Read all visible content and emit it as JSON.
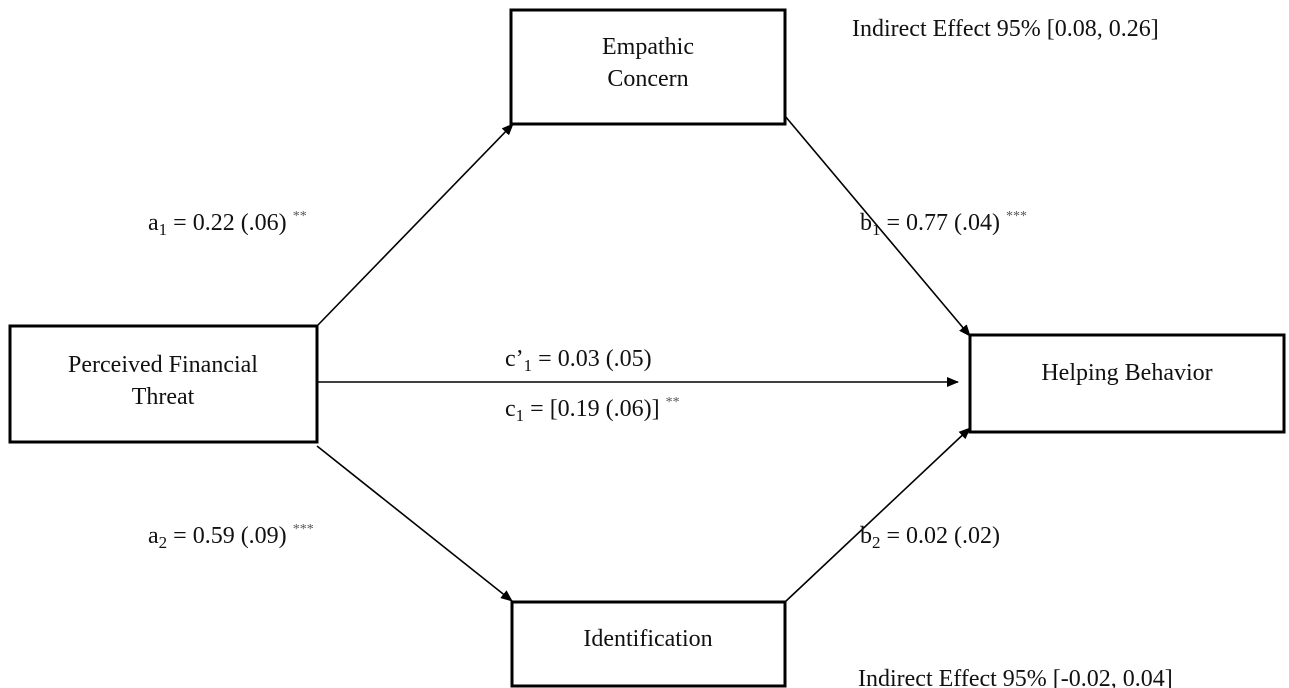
{
  "nodes": [
    {
      "lines": [
        "Empathic",
        "Concern"
      ]
    },
    {
      "lines": [
        "Perceived Financial",
        "Threat"
      ]
    },
    {
      "lines": [
        "Helping Behavior"
      ]
    },
    {
      "lines": [
        "Identification"
      ]
    }
  ],
  "paths": [
    {
      "symbol": "a",
      "subscript": "1",
      "text": "= 0.22 (.06)",
      "stars": "**"
    },
    {
      "symbol": "b",
      "subscript": "1",
      "text": "= 0.77 (.04)",
      "stars": "***"
    },
    {
      "symbol": "c’",
      "subscript": "1",
      "text": "= 0.03 (.05)"
    },
    {
      "symbol": "c",
      "subscript": "1",
      "text": "= [0.19 (.06)]",
      "stars": "**"
    },
    {
      "symbol": "a",
      "subscript": "2",
      "text": "= 0.59 (.09)",
      "stars": "***"
    },
    {
      "symbol": "b",
      "subscript": "2",
      "text": "= 0.02 (.02)"
    }
  ],
  "indirect_effects": [
    "Indirect Effect 95% [0.08, 0.26]",
    "Indirect Effect 95% [-0.02, 0.04]"
  ]
}
